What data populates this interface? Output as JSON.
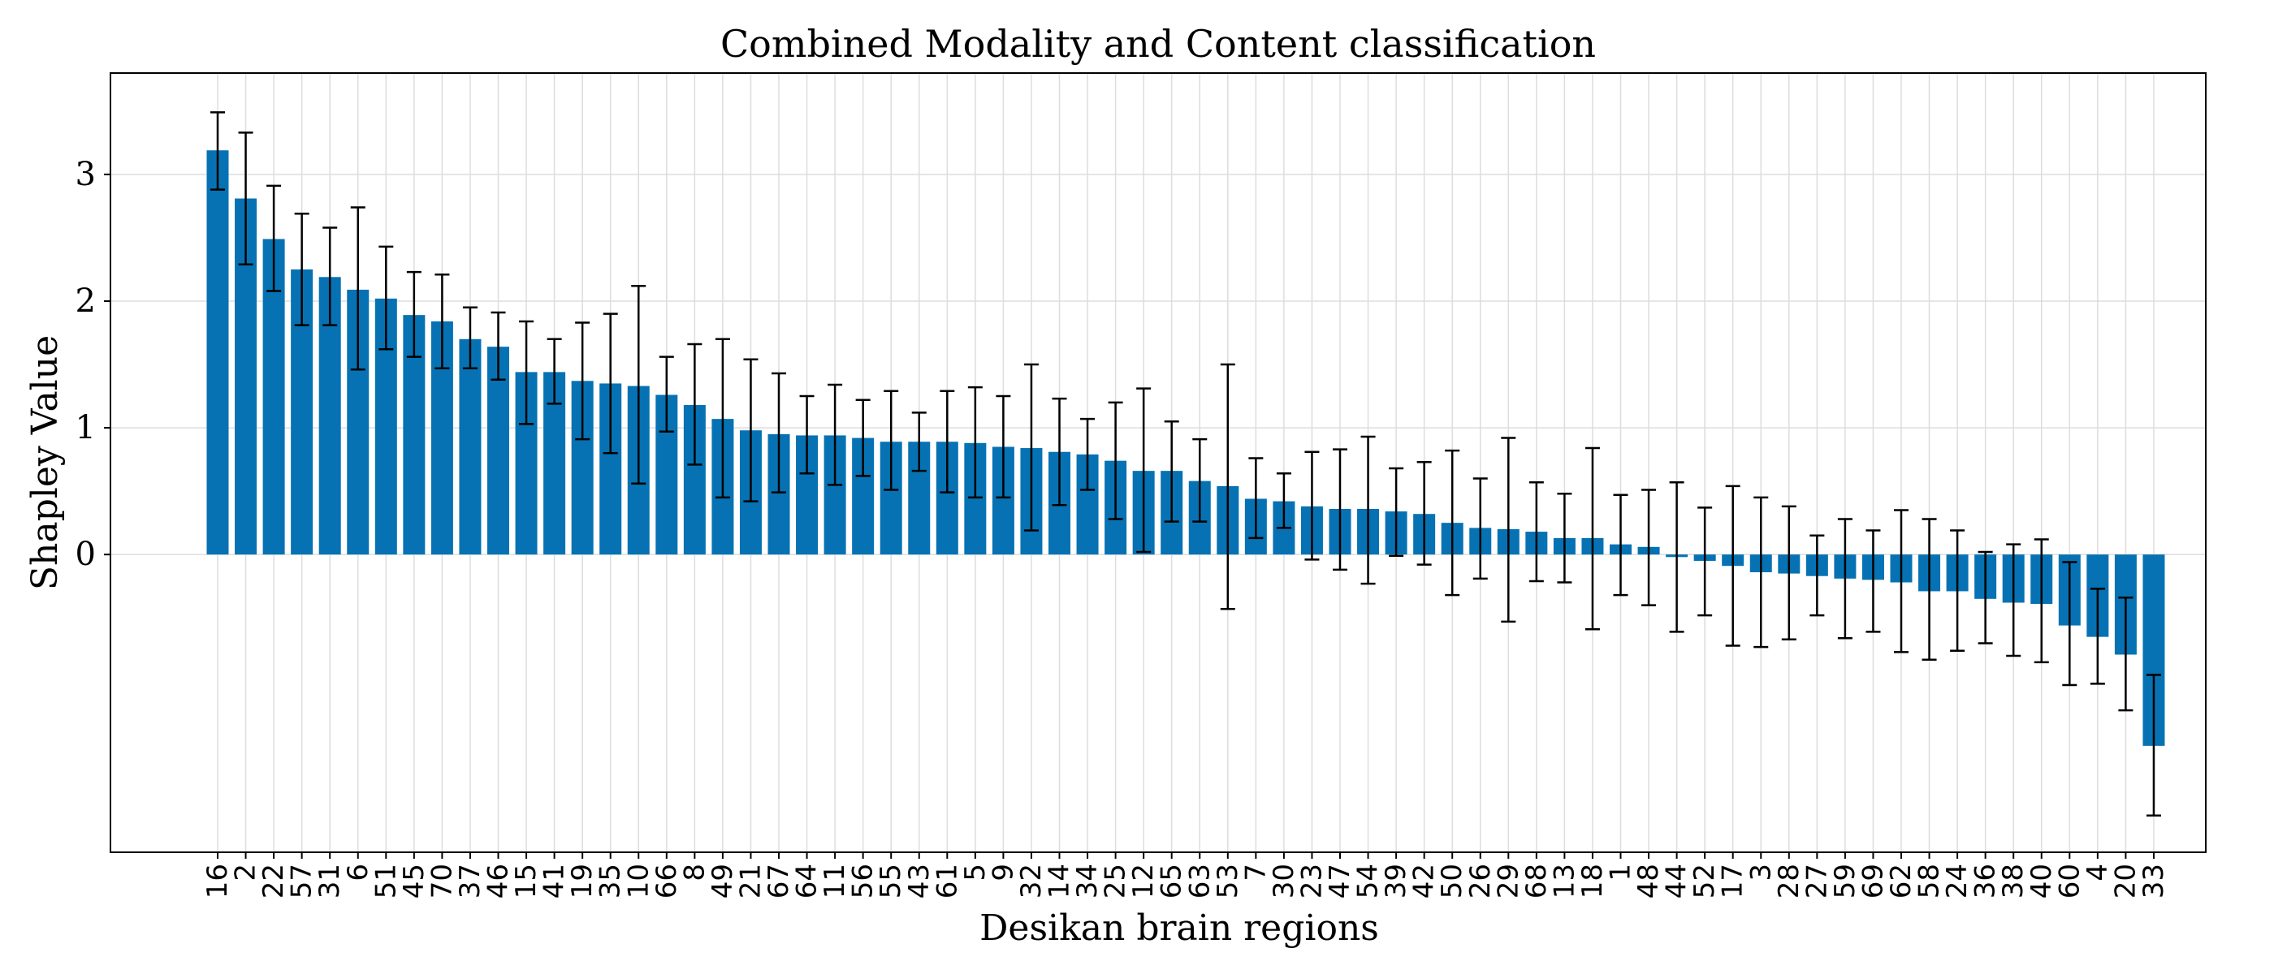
{
  "chart_data": {
    "type": "bar",
    "title": "Combined Modality and Content classification",
    "xlabel": "Desikan brain regions",
    "ylabel": "Shapley Value",
    "ylim": [
      -2.35,
      3.8
    ],
    "yticks": [
      0,
      1,
      2,
      3
    ],
    "grid": true,
    "bar_color": "#0672B3",
    "categories": [
      "16",
      "2",
      "22",
      "57",
      "31",
      "6",
      "51",
      "45",
      "70",
      "37",
      "46",
      "15",
      "41",
      "19",
      "35",
      "10",
      "66",
      "8",
      "49",
      "21",
      "67",
      "64",
      "11",
      "56",
      "55",
      "43",
      "61",
      "5",
      "9",
      "32",
      "14",
      "34",
      "25",
      "12",
      "65",
      "63",
      "53",
      "7",
      "30",
      "23",
      "47",
      "54",
      "39",
      "42",
      "50",
      "26",
      "29",
      "68",
      "13",
      "18",
      "1",
      "48",
      "44",
      "52",
      "17",
      "3",
      "28",
      "27",
      "59",
      "69",
      "62",
      "58",
      "24",
      "36",
      "38",
      "40",
      "60",
      "4",
      "20",
      "33"
    ],
    "values": [
      3.19,
      2.81,
      2.49,
      2.25,
      2.19,
      2.09,
      2.02,
      1.89,
      1.84,
      1.7,
      1.64,
      1.44,
      1.44,
      1.37,
      1.35,
      1.33,
      1.26,
      1.18,
      1.07,
      0.98,
      0.95,
      0.94,
      0.94,
      0.92,
      0.89,
      0.89,
      0.89,
      0.88,
      0.85,
      0.84,
      0.81,
      0.79,
      0.74,
      0.66,
      0.66,
      0.58,
      0.54,
      0.44,
      0.42,
      0.38,
      0.36,
      0.36,
      0.34,
      0.32,
      0.25,
      0.21,
      0.2,
      0.18,
      0.13,
      0.13,
      0.08,
      0.06,
      -0.02,
      -0.05,
      -0.09,
      -0.14,
      -0.15,
      -0.17,
      -0.19,
      -0.2,
      -0.22,
      -0.29,
      -0.29,
      -0.35,
      -0.38,
      -0.39,
      -0.56,
      -0.65,
      -0.79,
      -1.51
    ],
    "errors_lower": [
      2.88,
      2.29,
      2.08,
      1.81,
      1.81,
      1.46,
      1.62,
      1.56,
      1.47,
      1.47,
      1.38,
      1.03,
      1.19,
      0.91,
      0.8,
      0.56,
      0.97,
      0.71,
      0.45,
      0.42,
      0.49,
      0.64,
      0.55,
      0.62,
      0.51,
      0.66,
      0.49,
      0.45,
      0.45,
      0.19,
      0.39,
      0.51,
      0.28,
      0.02,
      0.26,
      0.26,
      -0.43,
      0.13,
      0.21,
      -0.04,
      -0.12,
      -0.23,
      -0.01,
      -0.08,
      -0.32,
      -0.19,
      -0.53,
      -0.21,
      -0.22,
      -0.59,
      -0.32,
      -0.4,
      -0.61,
      -0.48,
      -0.72,
      -0.73,
      -0.67,
      -0.48,
      -0.66,
      -0.61,
      -0.77,
      -0.83,
      -0.76,
      -0.7,
      -0.8,
      -0.85,
      -1.03,
      -1.02,
      -1.23,
      -2.06
    ],
    "errors_upper": [
      3.49,
      3.33,
      2.91,
      2.69,
      2.58,
      2.74,
      2.43,
      2.23,
      2.21,
      1.95,
      1.91,
      1.84,
      1.7,
      1.83,
      1.9,
      2.12,
      1.56,
      1.66,
      1.7,
      1.54,
      1.43,
      1.25,
      1.34,
      1.22,
      1.29,
      1.12,
      1.29,
      1.32,
      1.25,
      1.5,
      1.23,
      1.07,
      1.2,
      1.31,
      1.05,
      0.91,
      1.5,
      0.76,
      0.64,
      0.81,
      0.83,
      0.93,
      0.68,
      0.73,
      0.82,
      0.6,
      0.92,
      0.57,
      0.48,
      0.84,
      0.47,
      0.51,
      0.57,
      0.37,
      0.54,
      0.45,
      0.38,
      0.15,
      0.28,
      0.19,
      0.35,
      0.28,
      0.19,
      0.02,
      0.08,
      0.12,
      -0.06,
      -0.27,
      -0.34,
      -0.95
    ]
  }
}
